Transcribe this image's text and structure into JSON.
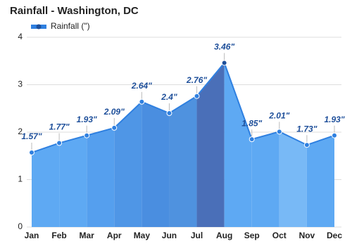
{
  "chart_data": {
    "type": "area",
    "title": "Rainfall - Washington, DC",
    "categories": [
      "Jan",
      "Feb",
      "Mar",
      "Apr",
      "May",
      "Jun",
      "Jul",
      "Aug",
      "Sep",
      "Oct",
      "Nov",
      "Dec"
    ],
    "series": [
      {
        "name": "Rainfall (\")",
        "color": "#2f80e0",
        "values": [
          1.57,
          1.77,
          1.93,
          2.09,
          2.64,
          2.4,
          2.76,
          3.46,
          1.85,
          2.01,
          1.73,
          1.93
        ],
        "value_labels": [
          "1.57\"",
          "1.77\"",
          "1.93\"",
          "2.09\"",
          "2.64\"",
          "2.4\"",
          "2.76\"",
          "3.46\"",
          "1.85\"",
          "2.01\"",
          "1.73\"",
          "1.93\""
        ]
      }
    ],
    "segment_colors": [
      "#5ea9f3",
      "#5ea9f3",
      "#559fee",
      "#4f96e6",
      "#4a8ee0",
      "#4f92df",
      "#4a6fb8",
      "#5ea9f3",
      "#5ea9f3",
      "#78b9f6",
      "#5ea9f3"
    ],
    "ylim": [
      0,
      4
    ],
    "yticks": [
      0,
      1,
      2,
      3,
      4
    ],
    "grid": true
  }
}
